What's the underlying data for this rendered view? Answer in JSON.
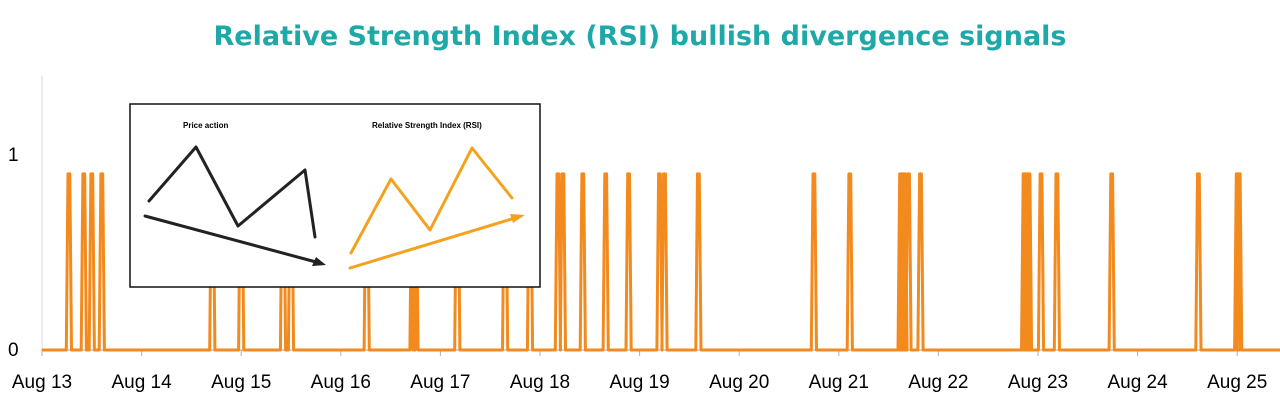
{
  "chart_data": {
    "type": "line",
    "title": "Relative Strength Index (RSI) bullish divergence signals",
    "xlabel": "",
    "ylabel": "",
    "x_tick_labels": [
      "Aug 13",
      "Aug 14",
      "Aug 15",
      "Aug 16",
      "Aug 17",
      "Aug 18",
      "Aug 19",
      "Aug 20",
      "Aug 21",
      "Aug 22",
      "Aug 23",
      "Aug 24",
      "Aug 25"
    ],
    "y_tick_labels": [
      "0",
      "1"
    ],
    "ylim": [
      0,
      1.4
    ],
    "grid": false,
    "legend": "none",
    "series": [
      {
        "color": "#f28a1e",
        "signal_value": 0.9,
        "baseline_value": 0,
        "signal_times_days_since_aug13": [
          0.27,
          0.42,
          0.5,
          0.6,
          1.71,
          2.0,
          2.42,
          2.5,
          3.26,
          3.72,
          3.75,
          4.17,
          4.65,
          4.9,
          5.18,
          5.23,
          5.43,
          5.66,
          5.89,
          6.2,
          6.25,
          6.59,
          7.75,
          8.11,
          8.62,
          8.64,
          8.66,
          8.7,
          8.82,
          9.86,
          9.88,
          9.9,
          9.91,
          10.03,
          10.19,
          10.74,
          11.61,
          12.0,
          12.02
        ]
      }
    ],
    "inset": {
      "left_title": "Price action",
      "right_title": "Relative Strength Index (RSI)",
      "left_color": "#222222",
      "right_color": "#f4a21e"
    }
  }
}
